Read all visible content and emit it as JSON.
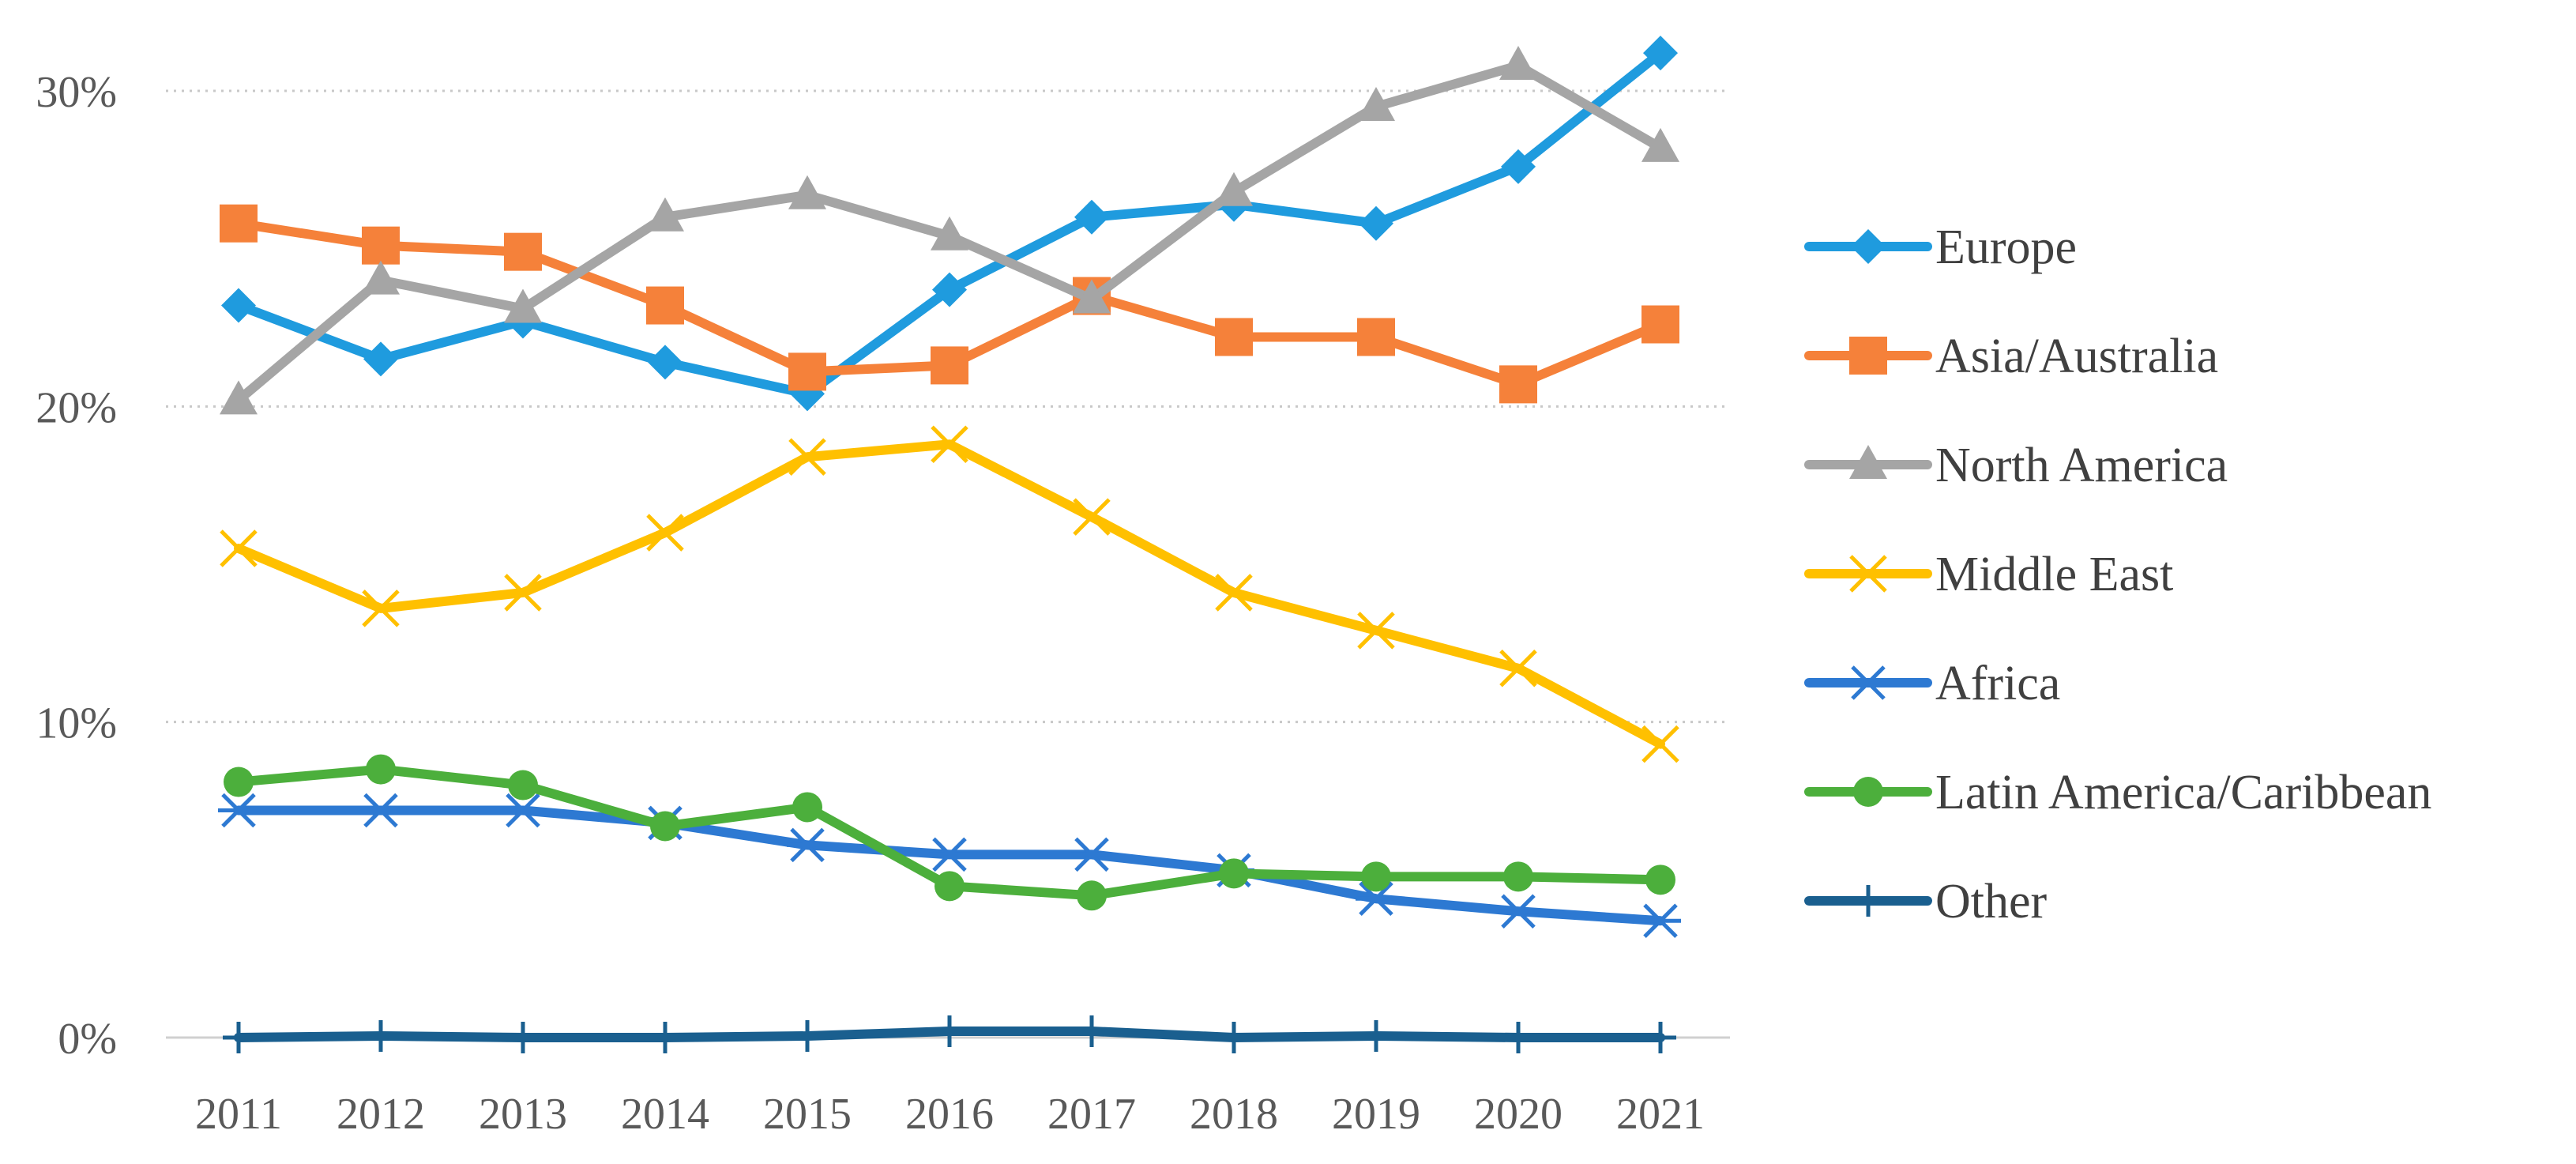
{
  "chart_data": {
    "type": "line",
    "title": "",
    "xlabel": "",
    "ylabel": "",
    "ylim": [
      0,
      30
    ],
    "yticks": [
      0,
      10,
      20,
      30
    ],
    "ytick_labels": [
      "0%",
      "10%",
      "20%",
      "30%"
    ],
    "grid": "horizontal dotted",
    "legend_position": "right",
    "categories": [
      "2011",
      "2012",
      "2013",
      "2014",
      "2015",
      "2016",
      "2017",
      "2018",
      "2019",
      "2020",
      "2021"
    ],
    "series": [
      {
        "name": "Europe",
        "color": "#1f9bde",
        "marker": "diamond",
        "values": [
          23.2,
          21.5,
          22.7,
          21.4,
          20.4,
          23.7,
          26.0,
          26.4,
          25.8,
          27.6,
          31.2
        ]
      },
      {
        "name": "Asia/Australia",
        "color": "#f5813a",
        "marker": "square",
        "values": [
          25.8,
          25.1,
          24.9,
          23.2,
          21.1,
          21.3,
          23.5,
          22.2,
          22.2,
          20.7,
          22.6
        ]
      },
      {
        "name": "North America",
        "color": "#a5a5a5",
        "marker": "triangle",
        "values": [
          20.2,
          24.0,
          23.1,
          26.0,
          26.7,
          25.4,
          23.4,
          26.8,
          29.5,
          30.8,
          28.2
        ]
      },
      {
        "name": "Middle East",
        "color": "#ffc000",
        "marker": "x",
        "values": [
          15.5,
          13.6,
          14.1,
          16.0,
          18.4,
          18.8,
          16.5,
          14.1,
          12.9,
          11.7,
          9.3
        ]
      },
      {
        "name": "Africa",
        "color": "#2d79d2",
        "marker": "asterisk",
        "values": [
          7.2,
          7.2,
          7.2,
          6.8,
          6.1,
          5.8,
          5.8,
          5.3,
          4.4,
          4.0,
          3.7
        ]
      },
      {
        "name": "Latin America/Caribbean",
        "color": "#4caf3c",
        "marker": "circle",
        "values": [
          8.1,
          8.5,
          8.0,
          6.7,
          7.3,
          4.8,
          4.5,
          5.2,
          5.1,
          5.1,
          5.0
        ]
      },
      {
        "name": "Other",
        "color": "#1a5f8f",
        "marker": "plus",
        "values": [
          0.0,
          0.05,
          0.0,
          0.0,
          0.05,
          0.2,
          0.2,
          0.0,
          0.05,
          0.0,
          0.0
        ]
      }
    ]
  }
}
